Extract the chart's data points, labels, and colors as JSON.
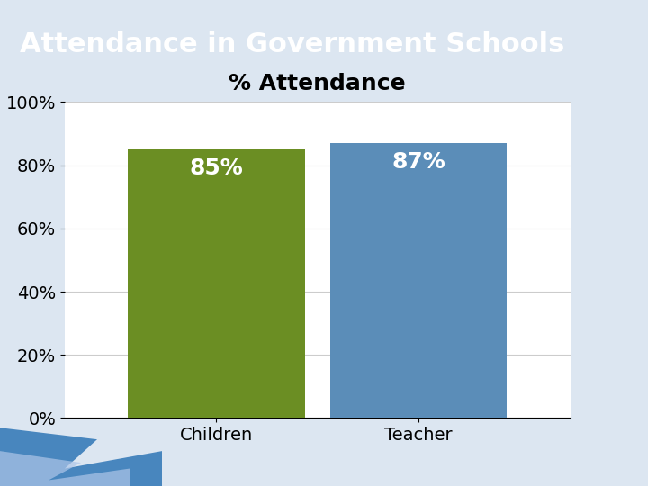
{
  "title": "Attendance in Government Schools",
  "chart_title": "% Attendance",
  "categories": [
    "Children",
    "Teacher"
  ],
  "values": [
    0.85,
    0.87
  ],
  "bar_labels": [
    "85%",
    "87%"
  ],
  "bar_colors": [
    "#6b8e23",
    "#5b8db8"
  ],
  "title_bg_color": "#2E75B6",
  "title_text_color": "#ffffff",
  "chart_bg_color": "#ffffff",
  "slide_bg_color": "#dce6f1",
  "ylim": [
    0,
    1.0
  ],
  "yticks": [
    0,
    0.2,
    0.4,
    0.6,
    0.8,
    1.0
  ],
  "ytick_labels": [
    "0%",
    "20%",
    "40%",
    "60%",
    "80%",
    "100%"
  ],
  "bar_label_fontsize": 18,
  "bar_label_color": "#ffffff",
  "axis_label_fontsize": 14,
  "chart_title_fontsize": 18,
  "title_fontsize": 22,
  "grid_color": "#cccccc",
  "bar_width": 0.35
}
